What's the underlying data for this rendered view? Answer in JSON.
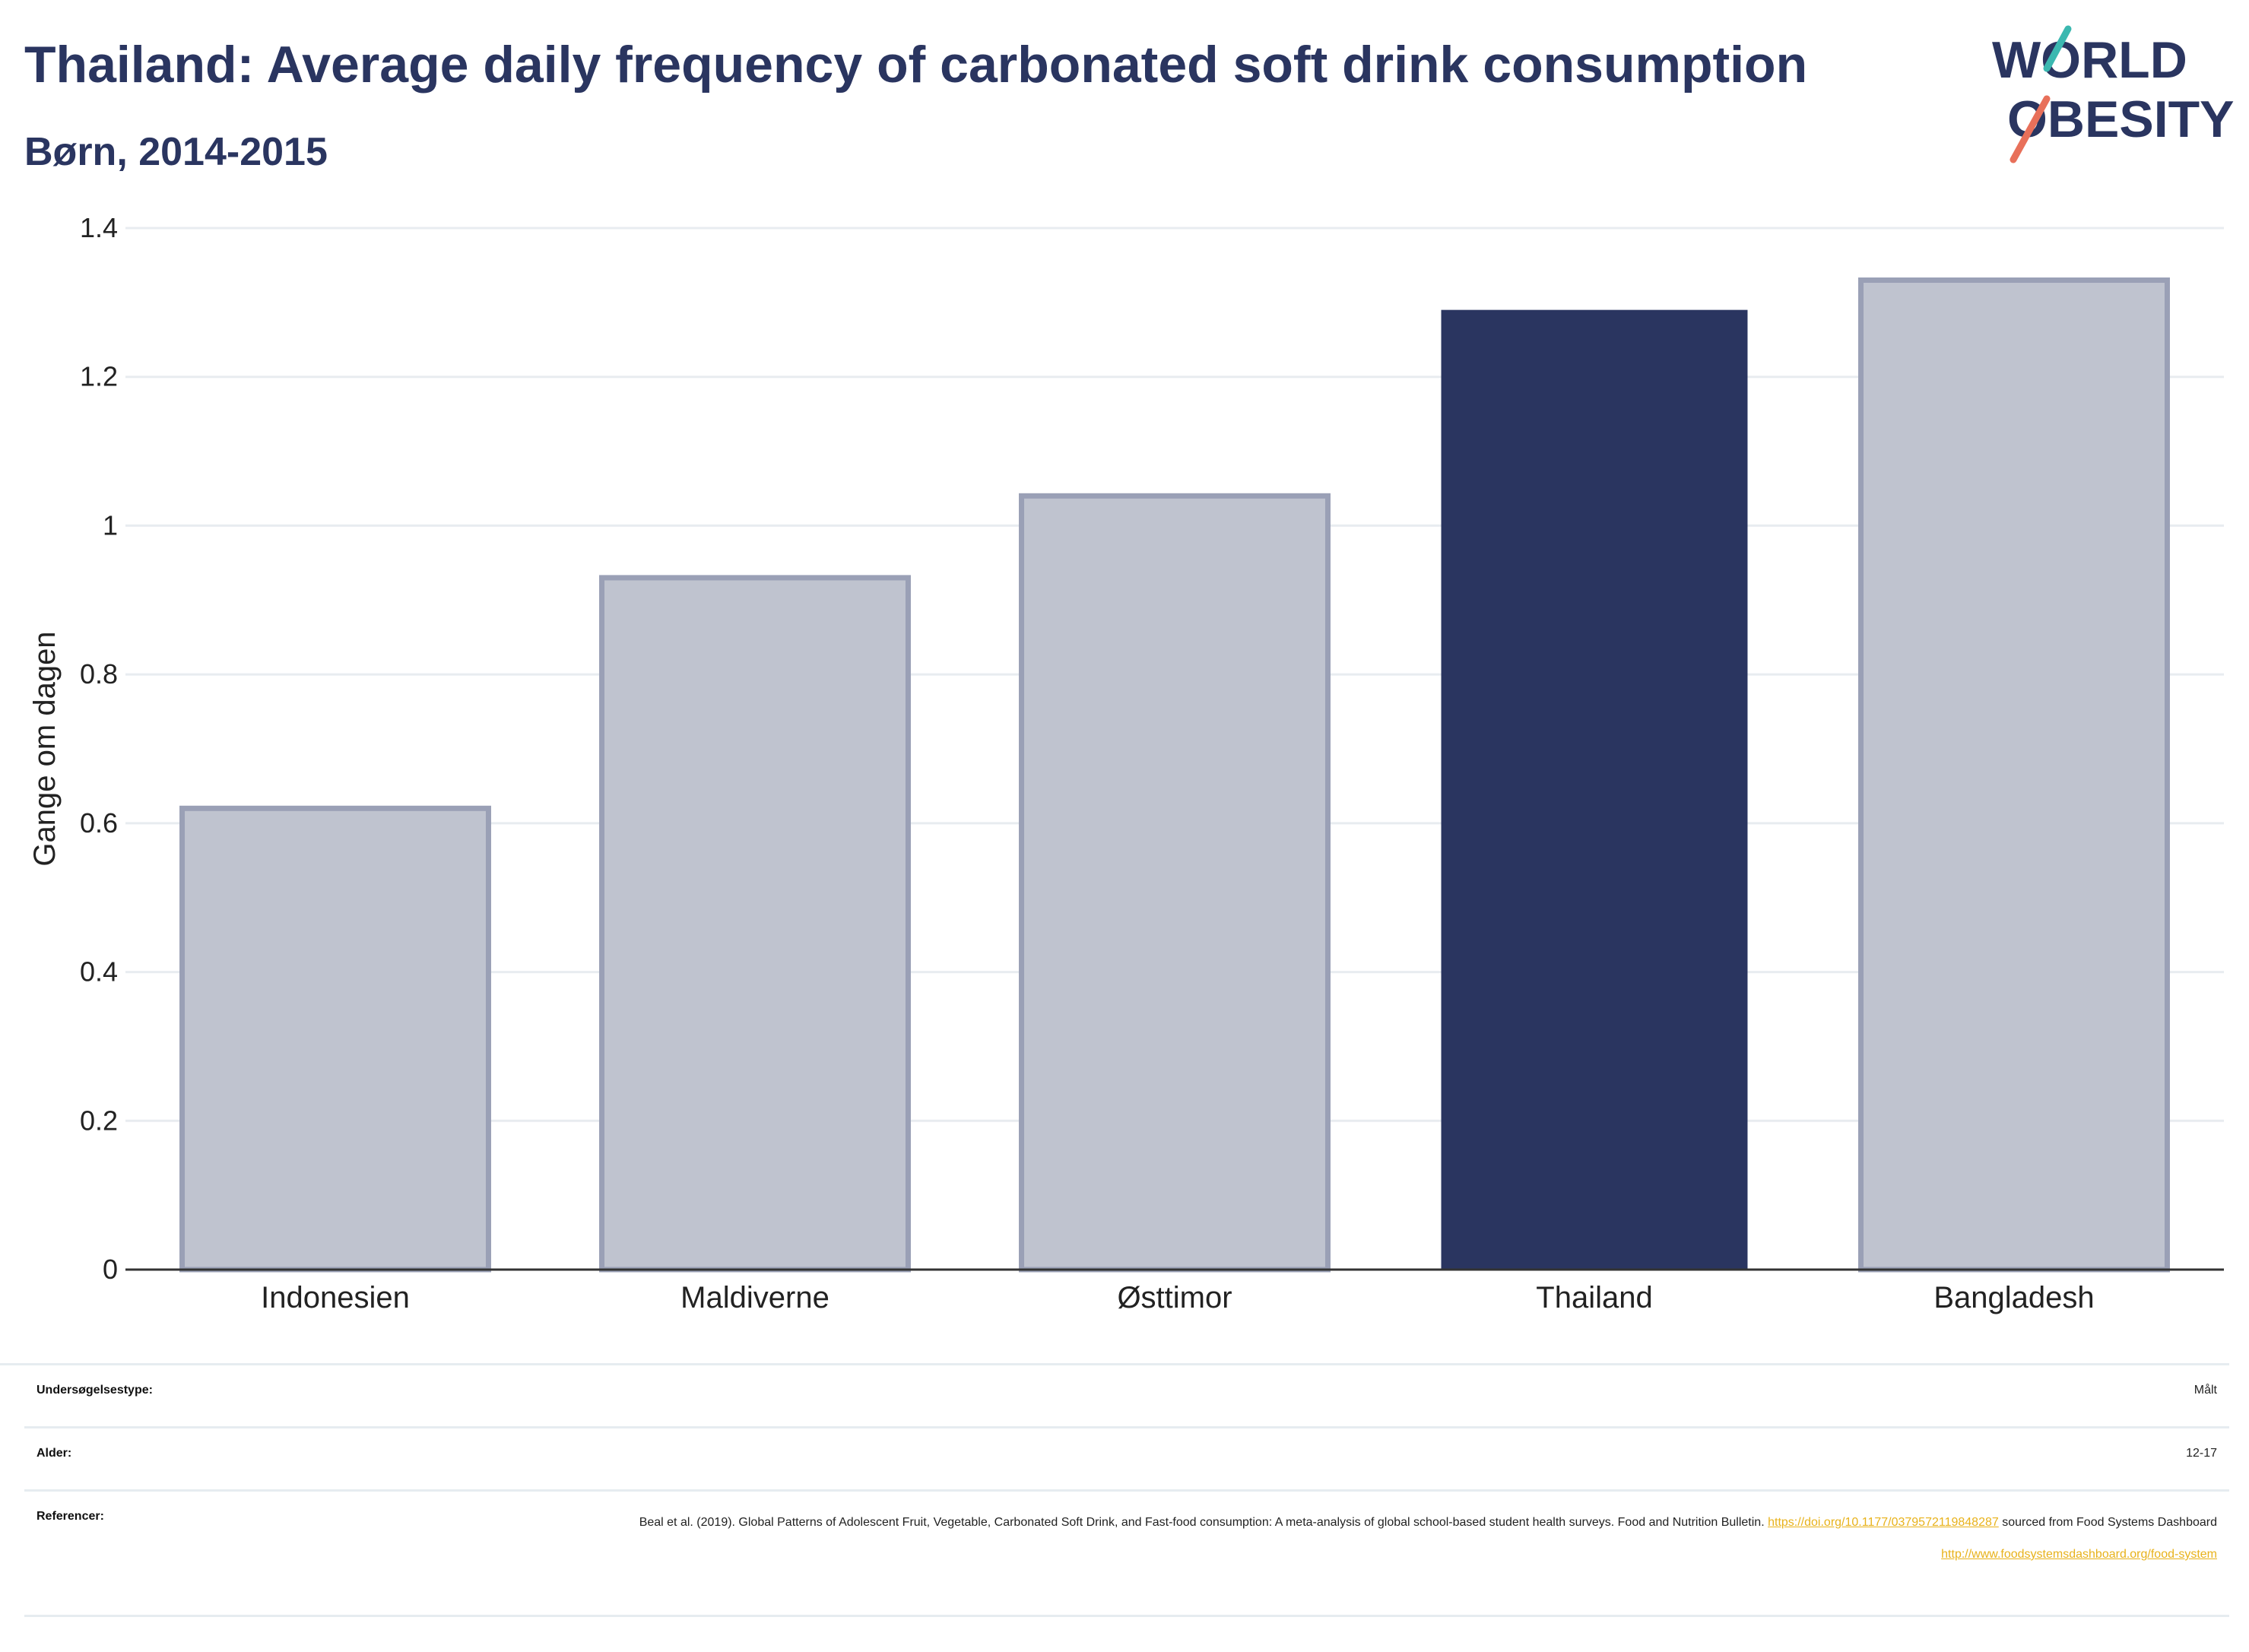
{
  "title": "Thailand: Average daily frequency of carbonated soft drink consumption",
  "subtitle": "Børn, 2014-2015",
  "logo": {
    "line1": "WORLD",
    "line2": "OBESITY",
    "colors": {
      "navy": "#2a3560",
      "teal": "#3bb8b0",
      "coral": "#e8705a"
    }
  },
  "chart_data": {
    "type": "bar",
    "categories": [
      "Indonesien",
      "Maldiverne",
      "Østtimor",
      "Thailand",
      "Bangladesh"
    ],
    "values": [
      0.62,
      0.93,
      1.04,
      1.29,
      1.33
    ],
    "highlight": "Thailand",
    "ylabel": "Gange om dagen",
    "xlabel": "",
    "ylim": [
      0,
      1.4
    ],
    "yticks": [
      0,
      0.2,
      0.4,
      0.6,
      0.8,
      1,
      1.2,
      1.4
    ],
    "ytick_labels": [
      "0",
      "0.2",
      "0.4",
      "0.6",
      "0.8",
      "1",
      "1.2",
      "1.4"
    ],
    "grid": true,
    "colors": {
      "highlight": "#2a3560",
      "other_fill": "#bfc3cf",
      "other_stroke": "#9aa0b6"
    }
  },
  "meta": {
    "survey_type": {
      "label": "Undersøgelsestype:",
      "value": "Målt"
    },
    "age": {
      "label": "Alder:",
      "value": "12-17"
    },
    "references": {
      "label": "Referencer:",
      "text1": "Beal et al. (2019). Global Patterns of Adolescent Fruit, Vegetable, Carbonated Soft Drink, and Fast-food consumption: A meta-analysis of global school-based student health surveys. Food and Nutrition Bulletin. ",
      "link1": "https://doi.org/10.1177/0379572119848287",
      "text2": " sourced from Food Systems Dashboard ",
      "link2": "http://www.foodsystemsdashboard.org/food-system"
    }
  }
}
